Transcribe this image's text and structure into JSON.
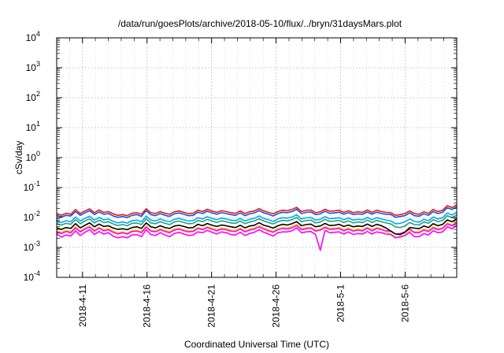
{
  "chart_data": {
    "type": "line",
    "title": "/data/run/goesPlots/archive/2018-05-10/flux/../bryn/31daysMars.plot",
    "xlabel": "Coordinated Universal Time (UTC)",
    "ylabel": "cSv/day",
    "y_scale": "log",
    "ylim": [
      0.0001,
      10000
    ],
    "xlim": [
      "2018-04-09",
      "2018-05-10"
    ],
    "grid": true,
    "legend": "none",
    "y_ticks": [
      {
        "base": "10",
        "exp": "-4"
      },
      {
        "base": "10",
        "exp": "-3"
      },
      {
        "base": "10",
        "exp": "-2"
      },
      {
        "base": "10",
        "exp": "-1"
      },
      {
        "base": "10",
        "exp": "0"
      },
      {
        "base": "10",
        "exp": "1"
      },
      {
        "base": "10",
        "exp": "2"
      },
      {
        "base": "10",
        "exp": "3"
      },
      {
        "base": "10",
        "exp": "4"
      }
    ],
    "x_ticks": [
      {
        "date": "2018-04-11",
        "label": "2018-4-11"
      },
      {
        "date": "2018-04-16",
        "label": "2018-4-16"
      },
      {
        "date": "2018-04-21",
        "label": "2018-4-21"
      },
      {
        "date": "2018-04-26",
        "label": "2018-4-26"
      },
      {
        "date": "2018-05-01",
        "label": "2018-5-1"
      },
      {
        "date": "2018-05-06",
        "label": "2018-5-6"
      }
    ],
    "series": [
      {
        "color": "#e41a1c",
        "values": [
          0.0135,
          0.012,
          0.0138,
          0.0128,
          0.0185,
          0.0135,
          0.0165,
          0.0195,
          0.0145,
          0.0178,
          0.0148,
          0.0158,
          0.0132,
          0.0118,
          0.0125,
          0.0115,
          0.0138,
          0.0145,
          0.0128,
          0.0195,
          0.0145,
          0.0135,
          0.0158,
          0.0138,
          0.0128,
          0.0155,
          0.0165,
          0.0148,
          0.0135,
          0.0138,
          0.0175,
          0.0158,
          0.0188,
          0.0165,
          0.0148,
          0.0168,
          0.0158,
          0.0145,
          0.0138,
          0.0165,
          0.0135,
          0.0155,
          0.0165,
          0.0198,
          0.0165,
          0.0148,
          0.0132,
          0.0158,
          0.0175,
          0.0168,
          0.0185,
          0.0218,
          0.0158,
          0.0172,
          0.0178,
          0.0145,
          0.0155,
          0.0188,
          0.0162,
          0.0165,
          0.0175,
          0.0148,
          0.0168,
          0.0145,
          0.0155,
          0.0148,
          0.0178,
          0.0148,
          0.0175,
          0.0158,
          0.0148,
          0.0145,
          0.0118,
          0.0125,
          0.0135,
          0.0165,
          0.0135,
          0.0128,
          0.0155,
          0.0138,
          0.0185,
          0.0158,
          0.0175,
          0.0248,
          0.0215,
          0.0265
        ]
      },
      {
        "color": "#1f4fe0",
        "values": [
          0.0118,
          0.0105,
          0.0118,
          0.0112,
          0.0158,
          0.0118,
          0.0142,
          0.0168,
          0.0125,
          0.0152,
          0.0128,
          0.0135,
          0.0112,
          0.0101,
          0.0108,
          0.0099,
          0.0118,
          0.0125,
          0.0109,
          0.0168,
          0.0125,
          0.0115,
          0.0135,
          0.0118,
          0.0109,
          0.0132,
          0.0142,
          0.0128,
          0.0115,
          0.0118,
          0.015,
          0.0135,
          0.0162,
          0.0142,
          0.0128,
          0.0145,
          0.0135,
          0.0125,
          0.0118,
          0.0142,
          0.0115,
          0.0132,
          0.0142,
          0.017,
          0.0142,
          0.0128,
          0.0112,
          0.0135,
          0.015,
          0.0145,
          0.0158,
          0.0188,
          0.0135,
          0.0148,
          0.0152,
          0.0125,
          0.0132,
          0.0162,
          0.0138,
          0.0142,
          0.015,
          0.0128,
          0.0145,
          0.0125,
          0.0132,
          0.0128,
          0.0152,
          0.0128,
          0.015,
          0.0135,
          0.0128,
          0.0125,
          0.0101,
          0.0108,
          0.0115,
          0.0142,
          0.0115,
          0.011,
          0.0132,
          0.0118,
          0.0158,
          0.0135,
          0.015,
          0.0212,
          0.0185,
          0.0228
        ]
      },
      {
        "color": "#1fa37a",
        "values": [
          0.0062,
          0.0056,
          0.0064,
          0.0059,
          0.0085,
          0.0062,
          0.0076,
          0.009,
          0.0066,
          0.0082,
          0.0068,
          0.0072,
          0.0061,
          0.0054,
          0.0058,
          0.0053,
          0.0064,
          0.0066,
          0.0058,
          0.009,
          0.0066,
          0.0062,
          0.0072,
          0.0064,
          0.0058,
          0.0071,
          0.0076,
          0.0068,
          0.0062,
          0.0064,
          0.008,
          0.0072,
          0.0087,
          0.0076,
          0.0068,
          0.0077,
          0.0072,
          0.0066,
          0.0064,
          0.0076,
          0.0062,
          0.0071,
          0.0076,
          0.0091,
          0.0076,
          0.0068,
          0.0061,
          0.0072,
          0.008,
          0.0077,
          0.0085,
          0.01,
          0.0072,
          0.0079,
          0.0082,
          0.0066,
          0.0071,
          0.0087,
          0.0074,
          0.0076,
          0.008,
          0.0068,
          0.0077,
          0.0066,
          0.0071,
          0.0068,
          0.0082,
          0.0068,
          0.008,
          0.0072,
          0.0066,
          0.0061,
          0.0048,
          0.0046,
          0.0052,
          0.0068,
          0.0058,
          0.0056,
          0.0071,
          0.0064,
          0.0085,
          0.0072,
          0.008,
          0.0114,
          0.0098,
          0.0122
        ]
      },
      {
        "color": "#00a8ff",
        "values": [
          0.0076,
          0.0068,
          0.0078,
          0.0072,
          0.0104,
          0.0076,
          0.0093,
          0.011,
          0.0082,
          0.01,
          0.0084,
          0.0089,
          0.0074,
          0.0066,
          0.0071,
          0.0065,
          0.0078,
          0.0082,
          0.0072,
          0.011,
          0.0082,
          0.0076,
          0.0089,
          0.0078,
          0.0072,
          0.0087,
          0.0093,
          0.0084,
          0.0076,
          0.0078,
          0.0098,
          0.0089,
          0.0106,
          0.0093,
          0.0084,
          0.0095,
          0.0089,
          0.0082,
          0.0078,
          0.0093,
          0.0076,
          0.0087,
          0.0093,
          0.0112,
          0.0093,
          0.0084,
          0.0074,
          0.0089,
          0.0098,
          0.0095,
          0.0104,
          0.0123,
          0.0089,
          0.0097,
          0.01,
          0.0082,
          0.0087,
          0.0106,
          0.0091,
          0.0093,
          0.0098,
          0.0084,
          0.0095,
          0.0082,
          0.0087,
          0.0084,
          0.01,
          0.0084,
          0.0098,
          0.0089,
          0.0082,
          0.0076,
          0.0062,
          0.0064,
          0.0072,
          0.0089,
          0.0074,
          0.007,
          0.0087,
          0.0078,
          0.0104,
          0.0089,
          0.0098,
          0.014,
          0.0121,
          0.015
        ]
      },
      {
        "color": "#ffd000",
        "values": [
          0.0036,
          0.0032,
          0.0037,
          0.0034,
          0.0049,
          0.0036,
          0.0044,
          0.0052,
          0.0038,
          0.0047,
          0.0039,
          0.0042,
          0.0035,
          0.0031,
          0.0033,
          0.003,
          0.0037,
          0.0038,
          0.0034,
          0.0052,
          0.0038,
          0.0036,
          0.0042,
          0.0037,
          0.0034,
          0.0041,
          0.0044,
          0.0039,
          0.0036,
          0.0037,
          0.0046,
          0.0042,
          0.005,
          0.0044,
          0.0039,
          0.0045,
          0.0042,
          0.0038,
          0.0037,
          0.0044,
          0.0036,
          0.0041,
          0.0044,
          0.0053,
          0.0044,
          0.0039,
          0.0035,
          0.0042,
          0.0046,
          0.0045,
          0.0049,
          0.0058,
          0.0042,
          0.0046,
          0.0047,
          0.0038,
          0.0041,
          0.005,
          0.0043,
          0.0044,
          0.0046,
          0.0039,
          0.0045,
          0.0038,
          0.0041,
          0.0039,
          0.0047,
          0.0039,
          0.0046,
          0.0042,
          0.0034,
          0.0028,
          0.0022,
          0.0021,
          0.0026,
          0.0036,
          0.0034,
          0.0033,
          0.0041,
          0.0037,
          0.0049,
          0.0042,
          0.0046,
          0.0066,
          0.0057,
          0.0071
        ]
      },
      {
        "color": "#ff00ff",
        "values": [
          0.0033,
          0.0029,
          0.0034,
          0.0031,
          0.0045,
          0.0033,
          0.0041,
          0.0048,
          0.0035,
          0.0044,
          0.0036,
          0.0039,
          0.0032,
          0.0028,
          0.0031,
          0.0028,
          0.0034,
          0.0035,
          0.0031,
          0.0048,
          0.0035,
          0.0033,
          0.0039,
          0.0034,
          0.0031,
          0.0038,
          0.0041,
          0.0036,
          0.0033,
          0.0034,
          0.0043,
          0.0039,
          0.0046,
          0.0041,
          0.0036,
          0.0041,
          0.0039,
          0.0035,
          0.0034,
          0.0041,
          0.0033,
          0.0038,
          0.0041,
          0.0049,
          0.0041,
          0.0036,
          0.0032,
          0.0039,
          0.0043,
          0.0041,
          0.0045,
          0.0054,
          0.0039,
          0.0042,
          0.0044,
          0.0035,
          0.0038,
          0.0046,
          0.004,
          0.0041,
          0.0043,
          0.0036,
          0.0041,
          0.0035,
          0.0038,
          0.0036,
          0.0044,
          0.0036,
          0.0043,
          0.0039,
          0.0036,
          0.0035,
          0.0028,
          0.0029,
          0.0033,
          0.0041,
          0.0031,
          0.0031,
          0.0038,
          0.0034,
          0.0045,
          0.0039,
          0.0043,
          0.0061,
          0.0053,
          0.0065
        ]
      },
      {
        "color": "#ff00ff",
        "values": [
          0.0028,
          0.0022,
          0.0026,
          0.0024,
          0.0036,
          0.0025,
          0.0032,
          0.0039,
          0.0027,
          0.0034,
          0.0028,
          0.0031,
          0.0024,
          0.0021,
          0.0023,
          0.0021,
          0.0026,
          0.0027,
          0.0023,
          0.0039,
          0.0027,
          0.0025,
          0.0031,
          0.0026,
          0.0023,
          0.0029,
          0.0032,
          0.0028,
          0.0025,
          0.0026,
          0.0033,
          0.0031,
          0.0037,
          0.0032,
          0.0028,
          0.0033,
          0.0031,
          0.0027,
          0.0026,
          0.0032,
          0.0025,
          0.0029,
          0.0032,
          0.0039,
          0.0032,
          0.0028,
          0.0024,
          0.0031,
          0.0033,
          0.0033,
          0.0036,
          0.0045,
          0.0031,
          0.0033,
          0.0034,
          0.0027,
          0.0008,
          0.0037,
          0.0031,
          0.0032,
          0.0033,
          0.0028,
          0.0033,
          0.0027,
          0.0029,
          0.0028,
          0.0034,
          0.0028,
          0.0033,
          0.0031,
          0.0028,
          0.0027,
          0.0021,
          0.0023,
          0.0025,
          0.0032,
          0.0023,
          0.0023,
          0.0029,
          0.0026,
          0.0036,
          0.0031,
          0.0033,
          0.0049,
          0.0042,
          0.0055
        ]
      },
      {
        "color": "#000000",
        "values": [
          0.0045,
          0.004,
          0.0046,
          0.0043,
          0.0062,
          0.0045,
          0.0055,
          0.0066,
          0.0049,
          0.006,
          0.005,
          0.0053,
          0.0044,
          0.004,
          0.0042,
          0.0039,
          0.0046,
          0.0049,
          0.0043,
          0.0066,
          0.0049,
          0.0045,
          0.0053,
          0.0046,
          0.0043,
          0.0052,
          0.0055,
          0.005,
          0.0045,
          0.0046,
          0.0059,
          0.0053,
          0.0063,
          0.0055,
          0.005,
          0.0056,
          0.0053,
          0.0049,
          0.0046,
          0.0055,
          0.0045,
          0.0052,
          0.0055,
          0.0067,
          0.0055,
          0.005,
          0.0044,
          0.0053,
          0.0059,
          0.0056,
          0.0062,
          0.0073,
          0.0053,
          0.0058,
          0.006,
          0.0049,
          0.0052,
          0.0063,
          0.0054,
          0.0055,
          0.0059,
          0.005,
          0.0056,
          0.0049,
          0.0052,
          0.005,
          0.006,
          0.005,
          0.0059,
          0.0053,
          0.0044,
          0.0035,
          0.0028,
          0.0027,
          0.0032,
          0.0046,
          0.0044,
          0.0042,
          0.0052,
          0.0046,
          0.0062,
          0.0053,
          0.0059,
          0.0083,
          0.0072,
          0.0089
        ]
      }
    ]
  }
}
